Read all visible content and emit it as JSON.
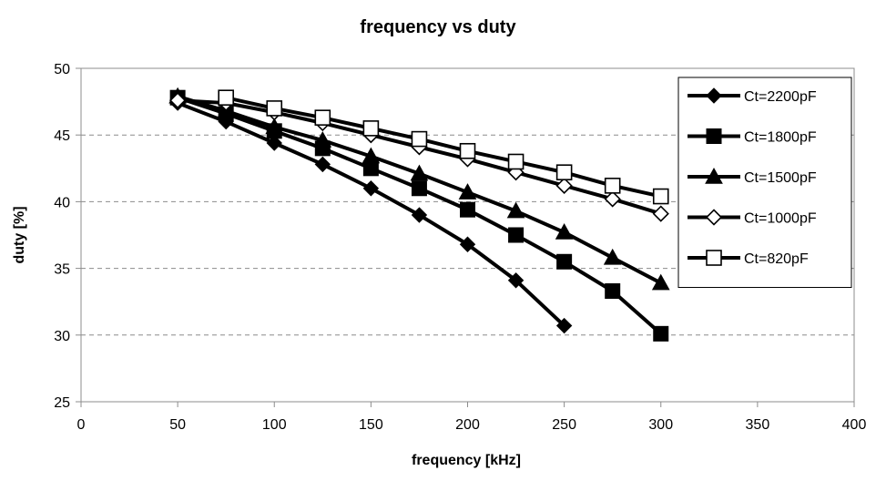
{
  "chart_data": {
    "type": "line",
    "title": "frequency vs duty",
    "xlabel": "frequency [kHz]",
    "ylabel": "duty [%]",
    "xlim": [
      0,
      400
    ],
    "ylim": [
      25,
      50
    ],
    "x_ticks": [
      "0",
      "50",
      "100",
      "150",
      "200",
      "250",
      "300",
      "350",
      "400"
    ],
    "y_ticks": [
      "25",
      "30",
      "35",
      "40",
      "45",
      "50"
    ],
    "grid": "horizontal dashed",
    "legend_position": "top-right",
    "line_color": "#000000",
    "series": [
      {
        "name": "Ct=2200pF",
        "marker": "diamond-filled",
        "x": [
          50,
          75,
          100,
          125,
          150,
          175,
          200,
          225,
          250
        ],
        "y": [
          47.4,
          46.0,
          44.4,
          42.8,
          41.0,
          39.0,
          36.8,
          34.1,
          30.7
        ]
      },
      {
        "name": "Ct=1800pF",
        "marker": "square-filled",
        "x": [
          50,
          75,
          100,
          125,
          150,
          175,
          200,
          225,
          250,
          275,
          300
        ],
        "y": [
          47.8,
          46.6,
          45.3,
          44.0,
          42.5,
          41.0,
          39.4,
          37.5,
          35.5,
          33.3,
          30.1
        ]
      },
      {
        "name": "Ct=1500pF",
        "marker": "triangle-filled",
        "x": [
          50,
          75,
          100,
          125,
          150,
          175,
          200,
          225,
          250,
          275,
          300
        ],
        "y": [
          47.9,
          46.8,
          45.6,
          44.6,
          43.4,
          42.1,
          40.7,
          39.3,
          37.7,
          35.8,
          33.9
        ]
      },
      {
        "name": "Ct=1000pF",
        "marker": "diamond-open",
        "x": [
          50,
          75,
          100,
          125,
          150,
          175,
          200,
          225,
          250,
          275,
          300
        ],
        "y": [
          47.6,
          47.4,
          46.7,
          45.9,
          45.0,
          44.1,
          43.2,
          42.2,
          41.2,
          40.2,
          39.1
        ]
      },
      {
        "name": "Ct=820pF",
        "marker": "square-open",
        "x": [
          75,
          100,
          125,
          150,
          175,
          200,
          225,
          250,
          275,
          300
        ],
        "y": [
          47.8,
          47.0,
          46.3,
          45.5,
          44.7,
          43.8,
          43.0,
          42.2,
          41.2,
          40.4
        ]
      }
    ]
  }
}
